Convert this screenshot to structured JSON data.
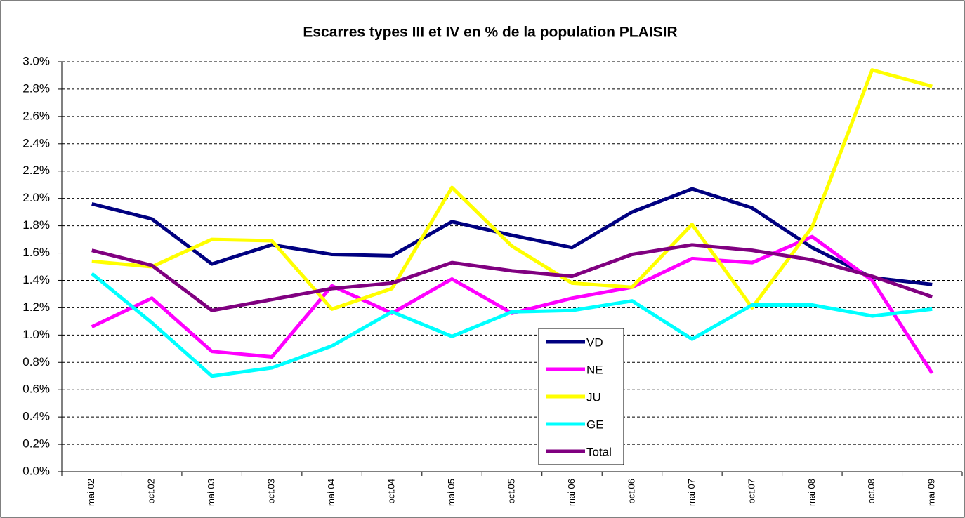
{
  "chart_data": {
    "type": "line",
    "title": "Escarres types III et IV en % de la population PLAISIR",
    "categories": [
      "mai 02",
      "oct.02",
      "mai 03",
      "oct.03",
      "mai 04",
      "oct.04",
      "mai 05",
      "oct.05",
      "mai 06",
      "oct.06",
      "mai 07",
      "oct.07",
      "mai 08",
      "oct.08",
      "mai 09"
    ],
    "series": [
      {
        "name": "VD",
        "color": "#000080",
        "values": [
          1.96,
          1.85,
          1.52,
          1.66,
          1.59,
          1.58,
          1.83,
          1.73,
          1.64,
          1.9,
          2.07,
          1.93,
          1.64,
          1.42,
          1.37
        ]
      },
      {
        "name": "NE",
        "color": "#ff00ff",
        "values": [
          1.06,
          1.27,
          0.88,
          0.84,
          1.36,
          1.16,
          1.41,
          1.16,
          1.27,
          1.35,
          1.56,
          1.53,
          1.72,
          1.4,
          0.72
        ]
      },
      {
        "name": "JU",
        "color": "#ffff00",
        "values": [
          1.54,
          1.5,
          1.7,
          1.69,
          1.19,
          1.34,
          2.08,
          1.65,
          1.38,
          1.35,
          1.81,
          1.2,
          1.79,
          2.94,
          2.82
        ]
      },
      {
        "name": "GE",
        "color": "#00ffff",
        "values": [
          1.45,
          1.09,
          0.7,
          0.76,
          0.92,
          1.17,
          0.99,
          1.17,
          1.18,
          1.25,
          0.97,
          1.22,
          1.22,
          1.14,
          1.19
        ]
      },
      {
        "name": "Total",
        "color": "#800080",
        "values": [
          1.62,
          1.51,
          1.18,
          1.26,
          1.34,
          1.38,
          1.53,
          1.47,
          1.43,
          1.59,
          1.66,
          1.62,
          1.55,
          1.43,
          1.28
        ]
      }
    ],
    "ylim": [
      0,
      3
    ],
    "yticks": [
      {
        "value": 0,
        "label": "0.0%"
      },
      {
        "value": 0.2,
        "label": "0.2%"
      },
      {
        "value": 0.4,
        "label": "0.4%"
      },
      {
        "value": 0.6,
        "label": "0.6%"
      },
      {
        "value": 0.8,
        "label": "0.8%"
      },
      {
        "value": 1.0,
        "label": "1.0%"
      },
      {
        "value": 1.2,
        "label": "1.2%"
      },
      {
        "value": 1.4,
        "label": "1.4%"
      },
      {
        "value": 1.6,
        "label": "1.6%"
      },
      {
        "value": 1.8,
        "label": "1.8%"
      },
      {
        "value": 2.0,
        "label": "2.0%"
      },
      {
        "value": 2.2,
        "label": "2.2%"
      },
      {
        "value": 2.4,
        "label": "2.4%"
      },
      {
        "value": 2.6,
        "label": "2.6%"
      },
      {
        "value": 2.8,
        "label": "2.8%"
      },
      {
        "value": 3.0,
        "label": "3.0%"
      }
    ],
    "grid": true
  }
}
